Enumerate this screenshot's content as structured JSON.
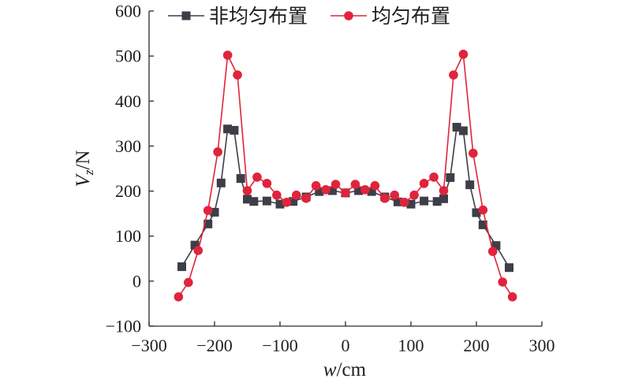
{
  "chart_data": {
    "type": "line",
    "xlabel": {
      "symbol": "w",
      "unit": "/cm"
    },
    "ylabel": {
      "symbol": "V",
      "subscript": "z",
      "unit": "/N"
    },
    "xlim": [
      -300,
      300
    ],
    "ylim": [
      -100,
      600
    ],
    "x_ticks": [
      -300,
      -200,
      -100,
      0,
      100,
      200,
      300
    ],
    "x_tick_labels": [
      "−300",
      "−200",
      "−100",
      "0",
      "100",
      "200",
      "300"
    ],
    "y_ticks": [
      -100,
      0,
      100,
      200,
      300,
      400,
      500,
      600
    ],
    "y_tick_labels": [
      "−100",
      "0",
      "100",
      "200",
      "300",
      "400",
      "500",
      "600"
    ],
    "grid": false,
    "legend": {
      "placement": "top-left"
    },
    "series": [
      {
        "name": "非均匀布置",
        "color": "#3d3e47",
        "marker": "square",
        "x": [
          -250,
          -230,
          -210,
          -200,
          -190,
          -180,
          -170,
          -160,
          -150,
          -140,
          -120,
          -100,
          -80,
          -60,
          -40,
          -20,
          0,
          20,
          40,
          60,
          80,
          100,
          120,
          140,
          150,
          160,
          170,
          180,
          190,
          200,
          210,
          230,
          250
        ],
        "y": [
          32,
          80,
          127,
          153,
          218,
          338,
          335,
          228,
          182,
          177,
          178,
          171,
          177,
          187,
          199,
          201,
          196,
          201,
          199,
          187,
          176,
          171,
          178,
          177,
          183,
          230,
          342,
          334,
          214,
          152,
          125,
          79,
          30
        ]
      },
      {
        "name": "均匀布置",
        "color": "#e0243c",
        "marker": "circle",
        "x": [
          -255,
          -240,
          -225,
          -210,
          -195,
          -180,
          -165,
          -150,
          -135,
          -120,
          -105,
          -90,
          -75,
          -60,
          -45,
          -30,
          -15,
          0,
          15,
          30,
          45,
          60,
          75,
          90,
          105,
          120,
          135,
          150,
          165,
          180,
          195,
          210,
          225,
          240,
          255
        ],
        "y": [
          -35,
          -3,
          68,
          157,
          287,
          502,
          458,
          201,
          231,
          217,
          191,
          175,
          191,
          184,
          212,
          203,
          215,
          196,
          215,
          203,
          212,
          184,
          191,
          175,
          191,
          217,
          231,
          201,
          458,
          504,
          284,
          158,
          66,
          -2,
          -35
        ]
      }
    ]
  }
}
